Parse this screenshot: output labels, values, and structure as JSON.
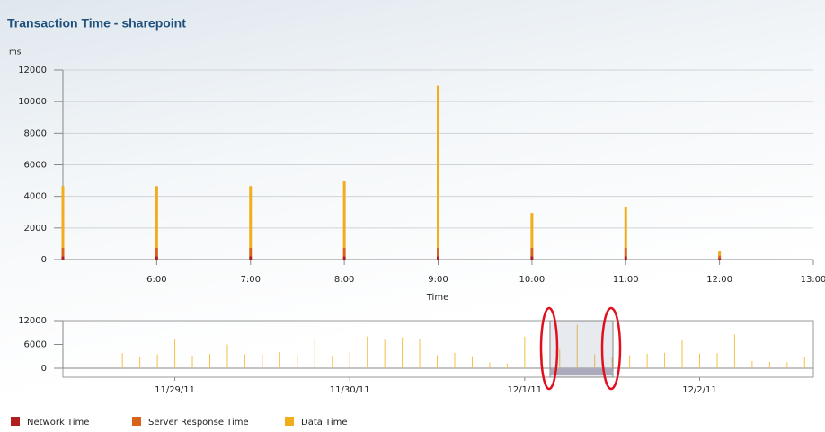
{
  "chart_data": [
    {
      "type": "bar",
      "stacked": true,
      "title": "Transaction Time - sharepoint",
      "y_label": "ms",
      "x_label": "Time",
      "x": [
        5,
        6,
        7,
        8,
        9,
        10,
        11,
        12
      ],
      "series": [
        {
          "name": "Network Time",
          "color": "#b01e1e",
          "values": [
            200,
            200,
            200,
            200,
            200,
            200,
            200,
            100
          ]
        },
        {
          "name": "Server Response Time",
          "color": "#d8641c",
          "values": [
            550,
            550,
            550,
            550,
            550,
            550,
            550,
            150
          ]
        },
        {
          "name": "Data Time",
          "color": "#f2ad1a",
          "values": [
            3900,
            3900,
            3900,
            4200,
            10250,
            2200,
            2550,
            300
          ]
        }
      ],
      "xlim": [
        5,
        13
      ],
      "xticks": [
        {
          "value": 6,
          "label": "6:00"
        },
        {
          "value": 7,
          "label": "7:00"
        },
        {
          "value": 8,
          "label": "8:00"
        },
        {
          "value": 9,
          "label": "9:00"
        },
        {
          "value": 10,
          "label": "10:00"
        },
        {
          "value": 11,
          "label": "11:00"
        },
        {
          "value": 12,
          "label": "12:00"
        },
        {
          "value": 13,
          "label": "13:00"
        }
      ],
      "ylim": [
        0,
        12000
      ],
      "yticks": [
        0,
        2000,
        4000,
        6000,
        8000,
        10000,
        12000
      ],
      "grid": true
    },
    {
      "type": "bar",
      "x": [
        28.7,
        28.8,
        28.9,
        29.0,
        29.1,
        29.2,
        29.3,
        29.4,
        29.5,
        29.6,
        29.7,
        29.8,
        29.9,
        30.0,
        30.1,
        30.2,
        30.3,
        30.4,
        30.5,
        30.6,
        30.7,
        30.8,
        30.9,
        31.0,
        31.1,
        31.2,
        31.3,
        31.4,
        31.5,
        31.6,
        31.7,
        31.8,
        31.9,
        32.0,
        32.1,
        32.2,
        32.3,
        32.4,
        32.5,
        32.6
      ],
      "series": [
        {
          "name": "Data Time",
          "color": "#f5c04a",
          "values": [
            3800,
            2800,
            3500,
            7400,
            3200,
            3600,
            6000,
            3500,
            3600,
            4100,
            3300,
            7600,
            3200,
            3900,
            8000,
            7200,
            7800,
            7400,
            3300,
            3900,
            3000,
            1500,
            1200,
            8000,
            3700,
            4800,
            11000,
            3500,
            2900,
            3300,
            3600,
            3900,
            7000,
            3700,
            3800,
            8500,
            1800,
            1600,
            1500,
            2800
          ]
        }
      ],
      "xlim": [
        28.36,
        32.65
      ],
      "xticks": [
        {
          "value": 29,
          "label": "11/29/11"
        },
        {
          "value": 30,
          "label": "11/30/11"
        },
        {
          "value": 31,
          "label": "12/1/11"
        },
        {
          "value": 32,
          "label": "12/2/11"
        }
      ],
      "ylim": [
        0,
        12000
      ],
      "yticks": [
        0,
        6000,
        12000
      ],
      "grid": false
    }
  ]
}
